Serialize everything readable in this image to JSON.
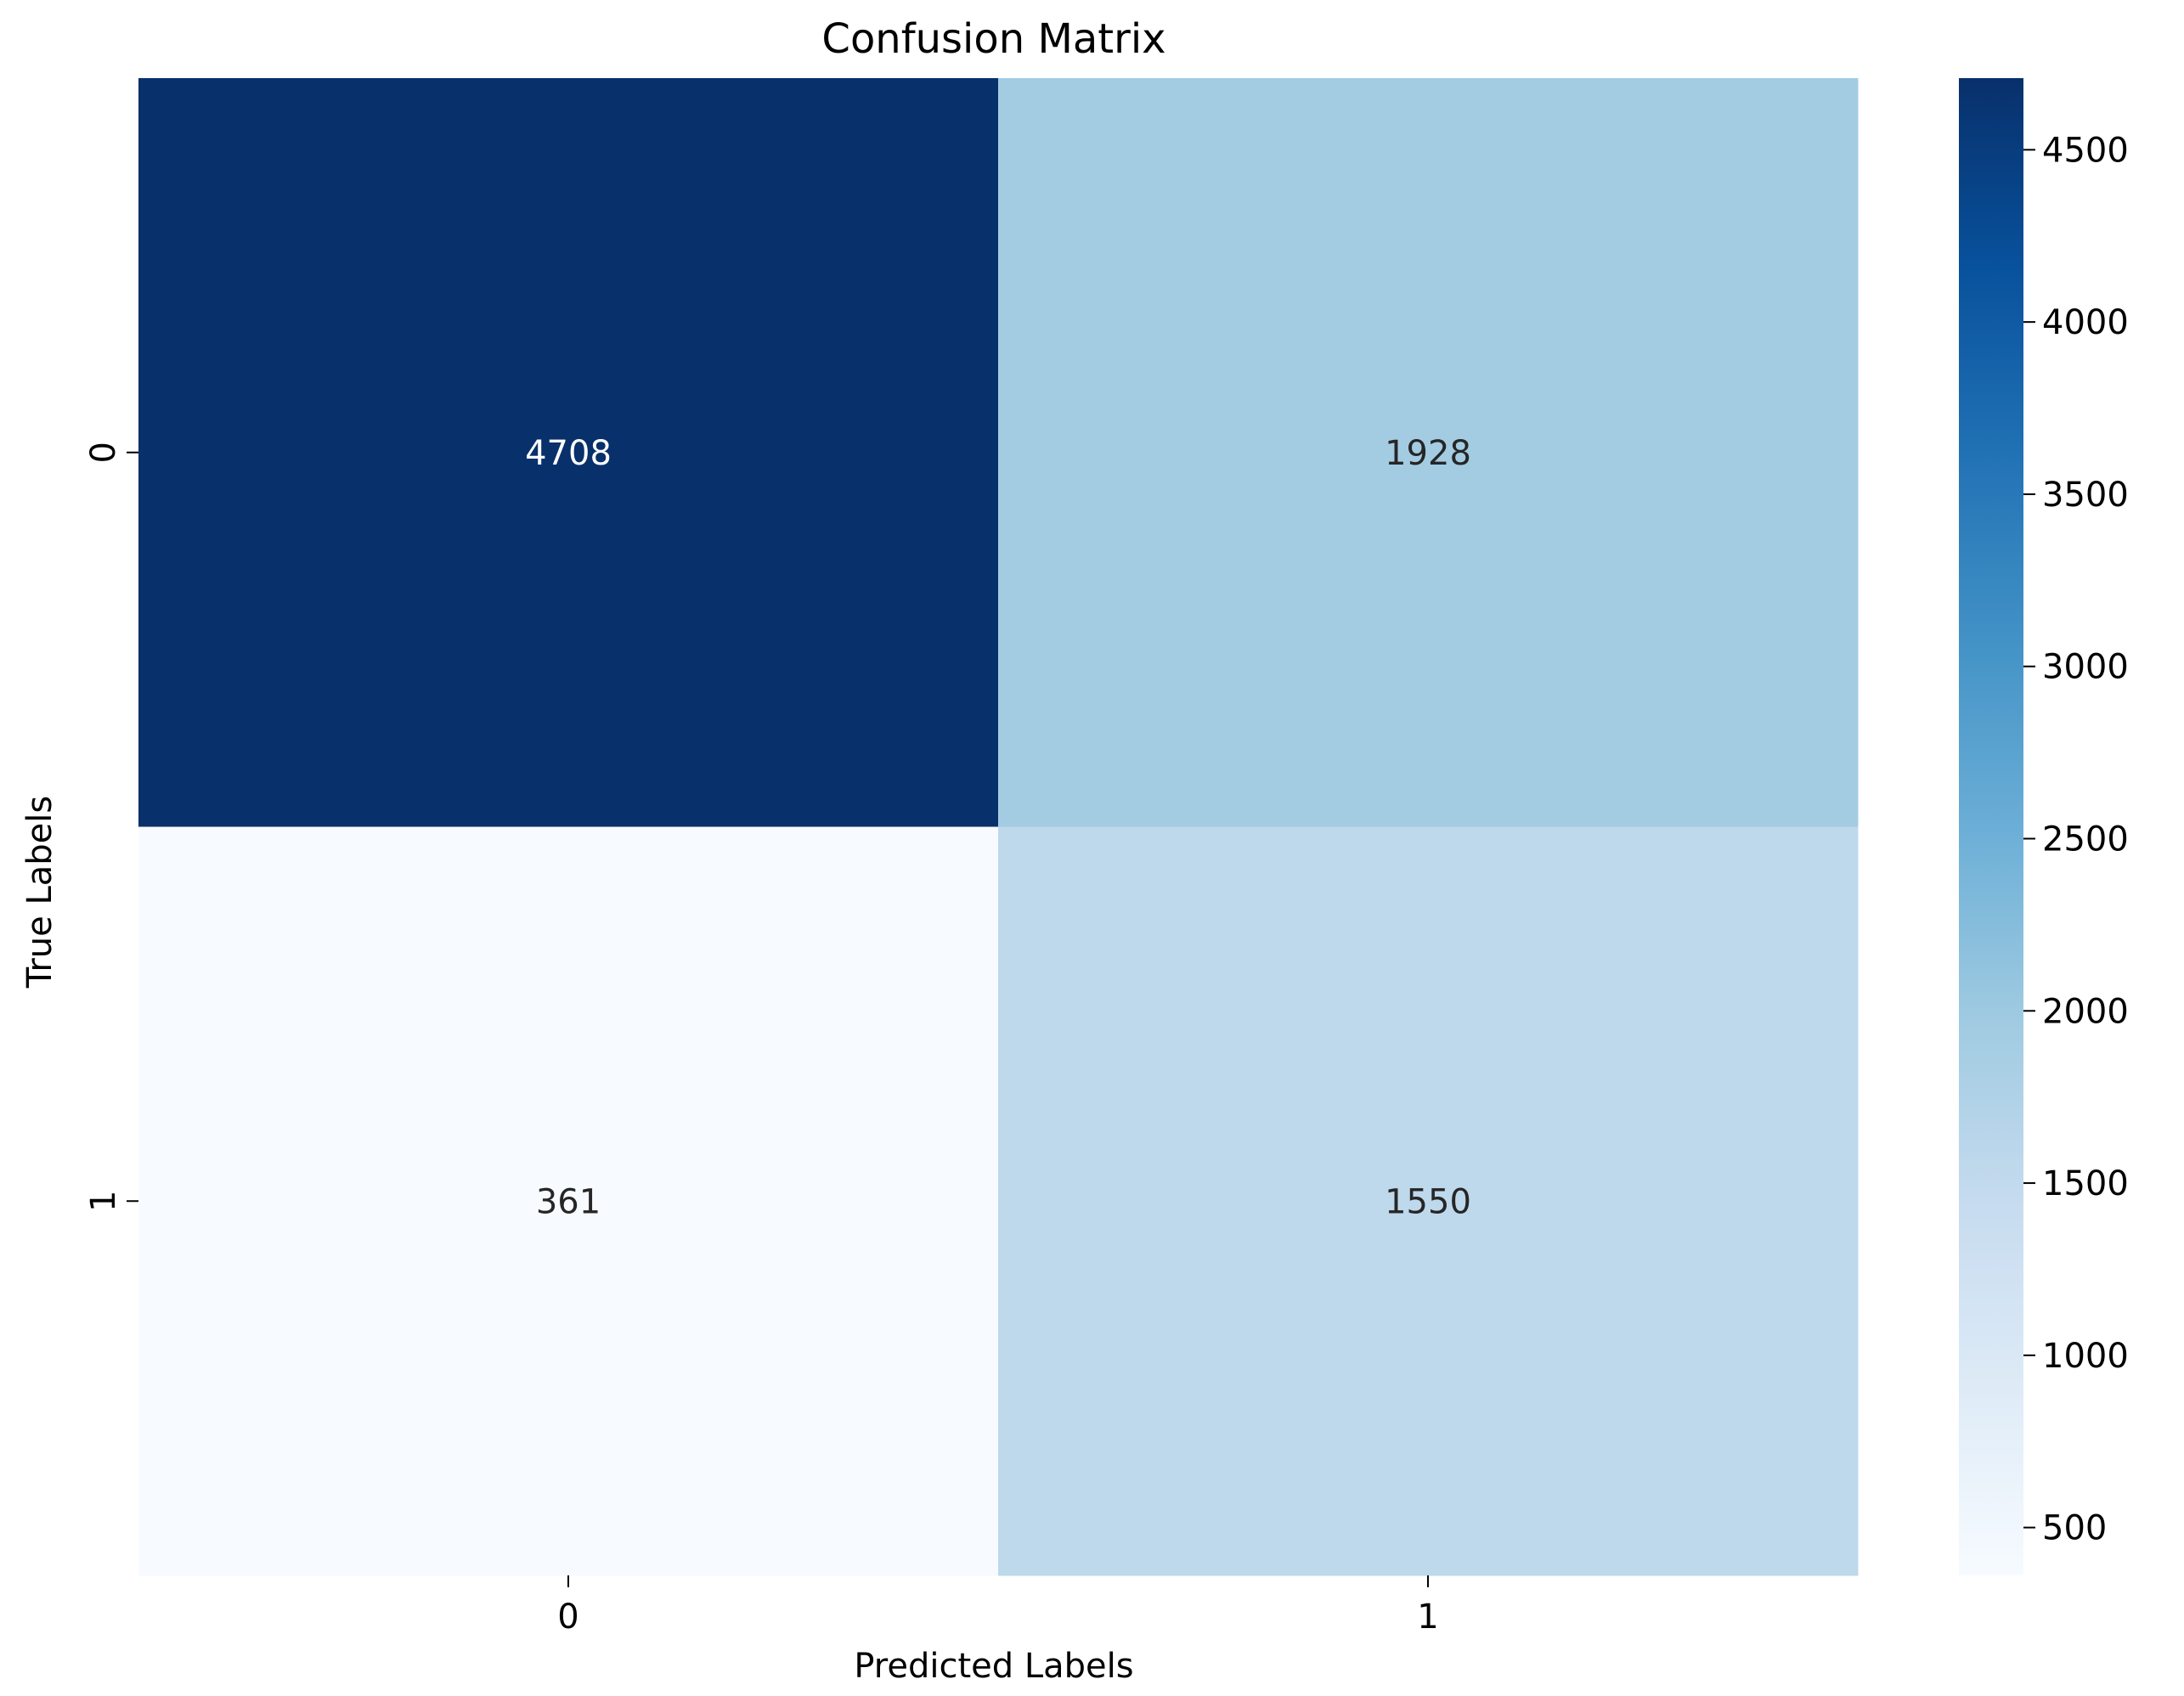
{
  "chart_data": {
    "type": "heatmap",
    "title": "Confusion Matrix",
    "xlabel": "Predicted Labels",
    "ylabel": "True Labels",
    "x_categories": [
      "0",
      "1"
    ],
    "y_categories": [
      "0",
      "1"
    ],
    "values": [
      [
        4708,
        1928
      ],
      [
        361,
        1550
      ]
    ],
    "colormap": "Blues",
    "vmin": 361,
    "vmax": 4708,
    "colorbar_ticks": [
      500,
      1000,
      1500,
      2000,
      2500,
      3000,
      3500,
      4000,
      4500
    ],
    "grid": false
  }
}
